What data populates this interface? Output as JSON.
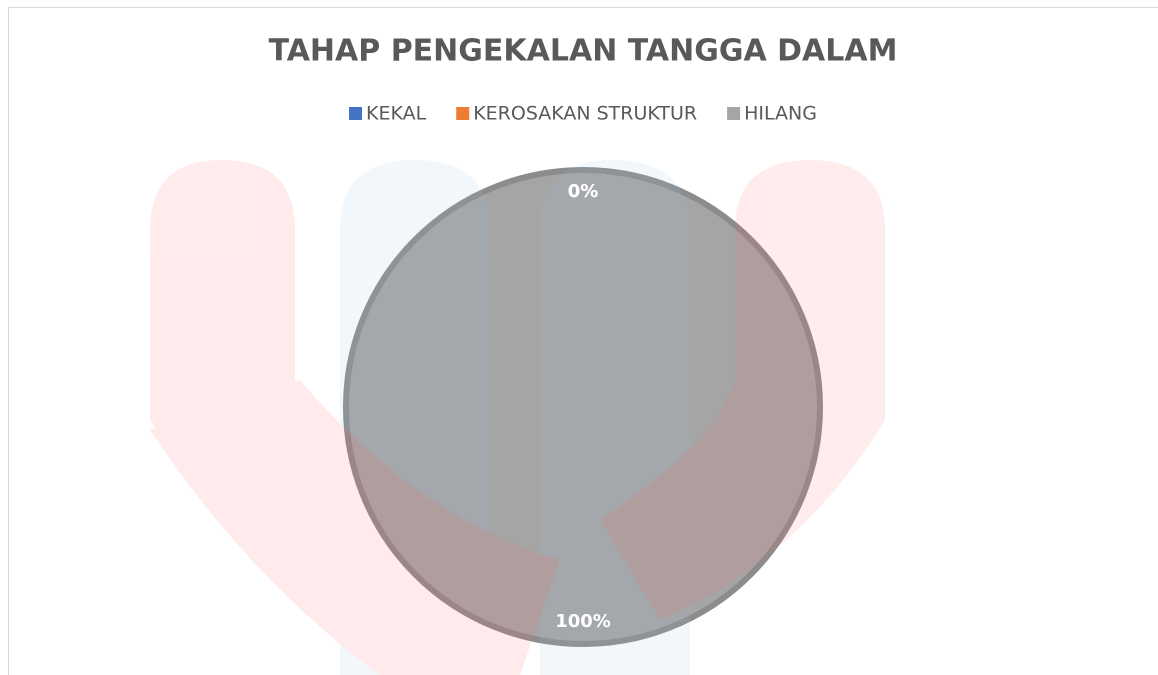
{
  "chart_data": {
    "type": "pie",
    "title": "TAHAP PENGEKALAN TANGGA DALAM",
    "categories": [
      "KEKAL",
      "KEROSAKAN STRUKTUR",
      "HILANG"
    ],
    "values": [
      0,
      0,
      100
    ],
    "value_labels": [
      "0%",
      "0%",
      "100%"
    ],
    "colors": [
      "#4472c4",
      "#ed7d31",
      "#a5a5a5"
    ],
    "legend": "top"
  }
}
